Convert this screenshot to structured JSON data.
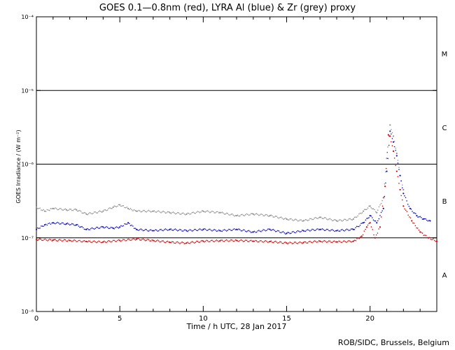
{
  "title": "GOES 0.1—0.8nm (red), LYRA Al (blue) & Zr (grey) proxy",
  "credit": "ROB/SIDC, Brussels, Belgium",
  "chart_data": {
    "type": "scatter",
    "xlabel": "Time / h UTC, 28 Jan 2017",
    "ylabel": "GOES Irradiance / (W m⁻²)",
    "xlim": [
      0,
      24
    ],
    "ylim": [
      1e-08,
      0.0001
    ],
    "yscale": "log",
    "x_ticks": [
      0,
      5,
      10,
      15,
      20
    ],
    "y_tick_labels": [
      "10⁻⁸",
      "10⁻⁷",
      "10⁻⁶",
      "10⁻⁵",
      "10⁻⁴"
    ],
    "y_tick_values": [
      1e-08,
      1e-07,
      1e-06,
      1e-05,
      0.0001
    ],
    "reference_lines": [
      1e-07,
      1e-06,
      1e-05
    ],
    "flare_classes": [
      {
        "label": "A",
        "value": 3.16e-08
      },
      {
        "label": "B",
        "value": 3.16e-07
      },
      {
        "label": "C",
        "value": 3.16e-06
      },
      {
        "label": "M",
        "value": 3.16e-05
      }
    ],
    "series": [
      {
        "name": "GOES 0.1—0.8nm",
        "color": "#e00000",
        "x": [
          0,
          1,
          2,
          3,
          4,
          5,
          6,
          7,
          8,
          9,
          10,
          11,
          12,
          13,
          14,
          15,
          16,
          17,
          18,
          19,
          19.5,
          19.8,
          20.0,
          20.3,
          20.6,
          20.9,
          21.1,
          21.2,
          21.4,
          21.6,
          21.8,
          22.0,
          22.5,
          23.0,
          23.5,
          24
        ],
        "values": [
          9.5e-08,
          9.3e-08,
          9.2e-08,
          8.9e-08,
          8.8e-08,
          9.2e-08,
          9.6e-08,
          9.2e-08,
          8.7e-08,
          8.5e-08,
          9e-08,
          9.1e-08,
          9.2e-08,
          9e-08,
          8.9e-08,
          8.5e-08,
          8.6e-08,
          9e-08,
          8.8e-08,
          9e-08,
          1.05e-07,
          1.4e-07,
          1.6e-07,
          1e-07,
          1.4e-07,
          5e-07,
          2.5e-06,
          2.4e-06,
          1.5e-06,
          8e-07,
          4.5e-07,
          2.7e-07,
          1.7e-07,
          1.2e-07,
          1e-07,
          9e-08
        ]
      },
      {
        "name": "LYRA Al",
        "color": "#1010cc",
        "x": [
          0,
          0.5,
          1,
          1.8,
          2.4,
          3.0,
          4.0,
          4.6,
          5.0,
          5.5,
          6.0,
          7.0,
          8.0,
          9.0,
          10.0,
          11.0,
          12.0,
          13.0,
          14.0,
          15.0,
          16.0,
          17.0,
          18.0,
          19.0,
          19.6,
          20.0,
          20.4,
          20.8,
          21.0,
          21.2,
          21.4,
          21.6,
          21.8,
          22.0,
          22.4,
          22.8,
          23.2,
          23.6
        ],
        "values": [
          1.3e-07,
          1.5e-07,
          1.6e-07,
          1.55e-07,
          1.5e-07,
          1.3e-07,
          1.4e-07,
          1.35e-07,
          1.4e-07,
          1.6e-07,
          1.3e-07,
          1.25e-07,
          1.3e-07,
          1.25e-07,
          1.3e-07,
          1.25e-07,
          1.3e-07,
          1.2e-07,
          1.3e-07,
          1.15e-07,
          1.25e-07,
          1.3e-07,
          1.25e-07,
          1.3e-07,
          1.6e-07,
          2e-07,
          1.6e-07,
          2.5e-07,
          8e-07,
          2.8e-06,
          2e-06,
          1.3e-06,
          7e-07,
          4e-07,
          2.5e-07,
          2e-07,
          1.8e-07,
          1.7e-07
        ]
      },
      {
        "name": "LYRA Zr",
        "color": "#909090",
        "x": [
          0,
          0.5,
          1,
          1.8,
          2.4,
          3.0,
          4.0,
          4.6,
          5.0,
          5.5,
          6.0,
          7.0,
          8.0,
          9.0,
          10.0,
          11.0,
          12.0,
          13.0,
          14.0,
          15.0,
          16.0,
          17.0,
          18.0,
          19.0,
          19.6,
          20.0,
          20.4,
          20.8,
          21.0,
          21.2,
          21.4,
          21.6,
          21.8,
          22.0
        ],
        "values": [
          2.6e-07,
          2.3e-07,
          2.5e-07,
          2.4e-07,
          2.4e-07,
          2.1e-07,
          2.3e-07,
          2.6e-07,
          2.8e-07,
          2.5e-07,
          2.3e-07,
          2.3e-07,
          2.2e-07,
          2.1e-07,
          2.3e-07,
          2.2e-07,
          2e-07,
          2.1e-07,
          2e-07,
          1.8e-07,
          1.7e-07,
          1.9e-07,
          1.7e-07,
          1.8e-07,
          2.3e-07,
          2.7e-07,
          2.2e-07,
          3.5e-07,
          1.2e-06,
          3.4e-06,
          2.4e-06,
          1.4e-06,
          7e-07,
          4.5e-07
        ]
      }
    ]
  }
}
